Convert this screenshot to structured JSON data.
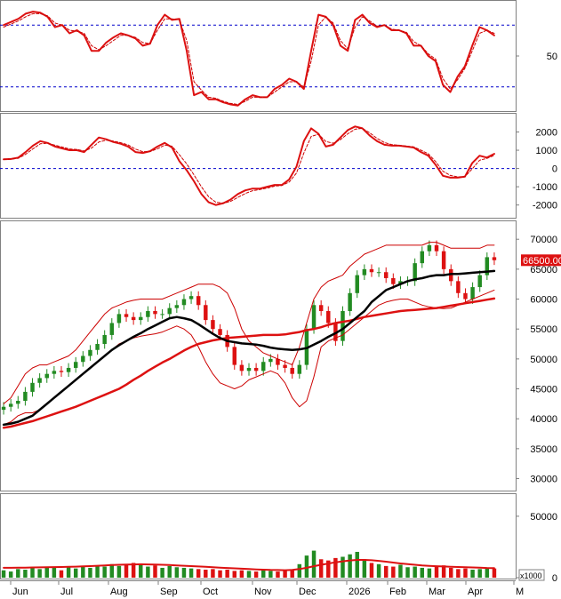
{
  "chart_data": [
    {
      "type": "line",
      "panel": "oscillator",
      "y_ticks": [
        50
      ],
      "ylim": [
        0,
        100
      ],
      "reference_lines": [
        80,
        20
      ],
      "series": [
        {
          "color": "#dd1111",
          "style": "solid",
          "values": [
            80,
            83,
            86,
            91,
            93,
            92,
            88,
            78,
            80,
            72,
            75,
            70,
            55,
            55,
            63,
            68,
            72,
            70,
            67,
            60,
            62,
            80,
            90,
            85,
            86,
            55,
            12,
            15,
            8,
            8,
            5,
            3,
            2,
            8,
            12,
            10,
            10,
            18,
            22,
            28,
            25,
            18,
            55,
            90,
            88,
            80,
            60,
            55,
            85,
            90,
            82,
            78,
            80,
            75,
            75,
            72,
            60,
            60,
            50,
            45,
            22,
            15,
            30,
            40,
            60,
            78,
            75,
            70
          ]
        },
        {
          "color": "#cc0000",
          "style": "dashed",
          "values": [
            78,
            81,
            84,
            88,
            91,
            91,
            89,
            82,
            80,
            75,
            74,
            72,
            60,
            56,
            60,
            65,
            70,
            70,
            68,
            63,
            62,
            75,
            86,
            86,
            85,
            65,
            25,
            17,
            10,
            9,
            6,
            4,
            3,
            6,
            10,
            10,
            10,
            15,
            20,
            25,
            25,
            20,
            45,
            80,
            88,
            82,
            65,
            57,
            78,
            88,
            84,
            79,
            80,
            76,
            75,
            73,
            64,
            60,
            52,
            47,
            28,
            18,
            27,
            38,
            55,
            72,
            75,
            72
          ]
        }
      ]
    },
    {
      "type": "line",
      "panel": "macd",
      "y_ticks": [
        2000,
        1000,
        0,
        -1000,
        -2000
      ],
      "ylim": [
        -2600,
        2900
      ],
      "reference_lines": [
        0
      ],
      "series": [
        {
          "color": "#dd1111",
          "style": "solid",
          "values": [
            500,
            520,
            600,
            900,
            1250,
            1500,
            1400,
            1200,
            1100,
            1000,
            1000,
            900,
            1300,
            1700,
            1600,
            1450,
            1350,
            1200,
            900,
            850,
            950,
            1200,
            1400,
            1150,
            400,
            -100,
            -700,
            -1400,
            -1850,
            -2000,
            -1900,
            -1700,
            -1400,
            -1200,
            -1100,
            -1100,
            -1000,
            -900,
            -900,
            -600,
            100,
            1500,
            2200,
            1900,
            1200,
            1300,
            1700,
            2100,
            2300,
            2200,
            1800,
            1500,
            1300,
            1250,
            1250,
            1200,
            1150,
            900,
            700,
            200,
            -400,
            -500,
            -500,
            -450,
            300,
            700,
            600,
            800
          ]
        },
        {
          "color": "#cc0000",
          "style": "dashed",
          "values": [
            500,
            510,
            560,
            780,
            1080,
            1350,
            1380,
            1280,
            1170,
            1070,
            1040,
            960,
            1120,
            1450,
            1550,
            1500,
            1410,
            1290,
            1060,
            920,
            930,
            1080,
            1280,
            1220,
            750,
            250,
            -350,
            -1000,
            -1550,
            -1850,
            -1900,
            -1800,
            -1580,
            -1370,
            -1220,
            -1150,
            -1070,
            -970,
            -930,
            -740,
            -250,
            850,
            1750,
            1880,
            1480,
            1380,
            1580,
            1900,
            2150,
            2200,
            1950,
            1650,
            1420,
            1310,
            1270,
            1230,
            1180,
            1000,
            800,
            380,
            -150,
            -380,
            -460,
            -450,
            -20,
            450,
            550,
            720
          ]
        }
      ]
    },
    {
      "type": "candlestick",
      "panel": "price",
      "last_price_label": "66500.00",
      "y_ticks": [
        70000,
        65000,
        60000,
        55000,
        50000,
        45000,
        40000,
        35000,
        30000
      ],
      "ylim": [
        28000,
        73000
      ],
      "close": [
        42000,
        42500,
        43000,
        44500,
        46000,
        46800,
        47500,
        48000,
        47800,
        48500,
        49500,
        50500,
        51500,
        52500,
        54000,
        56000,
        57500,
        57000,
        56500,
        57000,
        58000,
        57500,
        57500,
        58500,
        59000,
        60000,
        60500,
        59000,
        56500,
        55000,
        54000,
        52000,
        49000,
        48000,
        48500,
        48000,
        49500,
        50000,
        49000,
        48500,
        47500,
        49000,
        55000,
        59000,
        58000,
        56000,
        53000,
        58000,
        61000,
        64000,
        65000,
        64500,
        64500,
        63500,
        62500,
        63000,
        63000,
        66000,
        68000,
        69000,
        68000,
        65000,
        63000,
        61000,
        60000,
        62000,
        64000,
        67000,
        66500
      ],
      "open": [
        41500,
        42000,
        42500,
        43000,
        44500,
        46000,
        46800,
        47500,
        48000,
        47800,
        48500,
        49500,
        50500,
        51500,
        52500,
        54000,
        56000,
        57500,
        57000,
        56500,
        57000,
        58000,
        57500,
        57500,
        58500,
        59000,
        60000,
        60500,
        59000,
        56500,
        55000,
        54000,
        52000,
        49000,
        48000,
        48500,
        48000,
        49500,
        50000,
        49000,
        48500,
        47500,
        49000,
        55000,
        59000,
        58000,
        56000,
        53000,
        58000,
        61000,
        64000,
        65000,
        64500,
        64500,
        63500,
        62500,
        63000,
        63000,
        66000,
        68000,
        69000,
        68000,
        65000,
        63000,
        61000,
        60000,
        62000,
        64000,
        67000
      ],
      "ma_black": [
        39000,
        39200,
        39500,
        40000,
        40500,
        41500,
        42500,
        43500,
        44500,
        45500,
        46500,
        47500,
        48500,
        49500,
        50500,
        51500,
        52300,
        53000,
        53700,
        54300,
        55000,
        55600,
        56200,
        56800,
        57000,
        56800,
        56500,
        55800,
        55000,
        54200,
        53500,
        53000,
        52800,
        52600,
        52500,
        52400,
        52200,
        51900,
        51700,
        51600,
        51500,
        51600,
        51800,
        52400,
        53000,
        53700,
        54300,
        55000,
        56000,
        57000,
        58000,
        59500,
        60500,
        61500,
        62000,
        62500,
        63000,
        63300,
        63500,
        63800,
        64000,
        64000,
        64200,
        64200,
        64300,
        64400,
        64500,
        64600,
        64700
      ],
      "ma_red": [
        38500,
        38700,
        39000,
        39300,
        39600,
        40000,
        40400,
        40800,
        41200,
        41600,
        42000,
        42500,
        43000,
        43500,
        44000,
        44500,
        45000,
        45700,
        46500,
        47200,
        48000,
        48700,
        49400,
        50000,
        50700,
        51400,
        52000,
        52500,
        52800,
        53100,
        53300,
        53500,
        53600,
        53700,
        53800,
        53900,
        54000,
        54000,
        54000,
        54100,
        54300,
        54500,
        54800,
        55000,
        55300,
        55700,
        56000,
        56200,
        56400,
        56700,
        57000,
        57200,
        57400,
        57600,
        57800,
        58000,
        58100,
        58200,
        58300,
        58400,
        58500,
        58700,
        58900,
        59100,
        59300,
        59500,
        59700,
        59900,
        60100
      ],
      "bb_upper": [
        42500,
        43500,
        45500,
        47500,
        48500,
        49000,
        49000,
        49500,
        50000,
        50500,
        51500,
        53000,
        54500,
        56000,
        57500,
        58500,
        59000,
        59500,
        59800,
        60000,
        60000,
        60000,
        60000,
        60500,
        61000,
        61500,
        62000,
        62500,
        62500,
        62500,
        62000,
        61000,
        58500,
        55000,
        53000,
        52000,
        51000,
        50500,
        50000,
        49500,
        49000,
        52000,
        56000,
        60000,
        62000,
        63000,
        63500,
        64000,
        65500,
        66500,
        67500,
        68000,
        68500,
        69000,
        69000,
        69000,
        69000,
        69000,
        69000,
        69500,
        69500,
        69000,
        68500,
        68500,
        68500,
        68500,
        68500,
        69000,
        69000
      ],
      "bb_lower": [
        39000,
        39500,
        40500,
        41000,
        41000,
        41500,
        42500,
        43500,
        44500,
        45500,
        46500,
        47500,
        48500,
        49500,
        50500,
        51500,
        52500,
        53000,
        53500,
        53800,
        54000,
        54200,
        54500,
        55000,
        55500,
        55000,
        54000,
        52000,
        49500,
        47500,
        46000,
        45500,
        45000,
        45500,
        46500,
        47000,
        47500,
        48000,
        47500,
        46000,
        43500,
        42000,
        43000,
        47000,
        52000,
        53000,
        53500,
        54000,
        55000,
        56000,
        57000,
        58000,
        59000,
        59500,
        59800,
        60000,
        60000,
        59500,
        59000,
        58700,
        58500,
        58400,
        58500,
        59000,
        59500,
        60000,
        60500,
        61000,
        61500
      ]
    },
    {
      "type": "bar",
      "panel": "volume",
      "unit_label": "x1000",
      "y_ticks": [
        50000,
        0
      ],
      "ylim": [
        0,
        68000
      ],
      "values": [
        6000,
        5000,
        7000,
        6500,
        8000,
        7000,
        9000,
        8000,
        6000,
        8500,
        7500,
        9000,
        8000,
        10000,
        9000,
        11000,
        9500,
        10500,
        12000,
        11000,
        9000,
        10000,
        8000,
        9500,
        8500,
        8000,
        7500,
        7000,
        6500,
        7000,
        6000,
        6500,
        5500,
        6000,
        5500,
        5000,
        6000,
        5500,
        5000,
        5500,
        6000,
        11000,
        18000,
        22000,
        15000,
        14000,
        16000,
        17000,
        19000,
        21000,
        15000,
        12000,
        11000,
        9500,
        9000,
        10500,
        8500,
        9000,
        8000,
        7500,
        9000,
        10000,
        8000,
        7000,
        7500,
        6500,
        7000,
        8000,
        7500
      ],
      "ma": [
        8000,
        8000,
        8100,
        8200,
        8300,
        8400,
        8500,
        8600,
        8700,
        8800,
        9000,
        9200,
        9400,
        9700,
        10000,
        10300,
        10500,
        10700,
        10800,
        10900,
        10800,
        10700,
        10500,
        10300,
        10000,
        9700,
        9400,
        9100,
        8800,
        8500,
        8200,
        7900,
        7600,
        7300,
        7000,
        6700,
        6500,
        6300,
        6200,
        6100,
        6300,
        7000,
        8000,
        9300,
        10500,
        11500,
        12500,
        13300,
        14000,
        14500,
        14500,
        14200,
        13700,
        13000,
        12300,
        11600,
        11000,
        10500,
        10000,
        9600,
        9300,
        9100,
        8900,
        8700,
        8500,
        8300,
        8100,
        7900,
        7800
      ]
    }
  ],
  "x_axis": {
    "month_labels": [
      "Jun",
      "Jul",
      "Aug",
      "Sep",
      "Oct",
      "Nov",
      "Dec",
      "2026",
      "Feb",
      "Mar",
      "Apr",
      "M"
    ]
  },
  "colors": {
    "up": "#228b22",
    "down": "#dd1111",
    "bollinger": "#cc0000",
    "ma_short": "#000000",
    "ma_long": "#dd1111",
    "reference": "#0000cc"
  }
}
